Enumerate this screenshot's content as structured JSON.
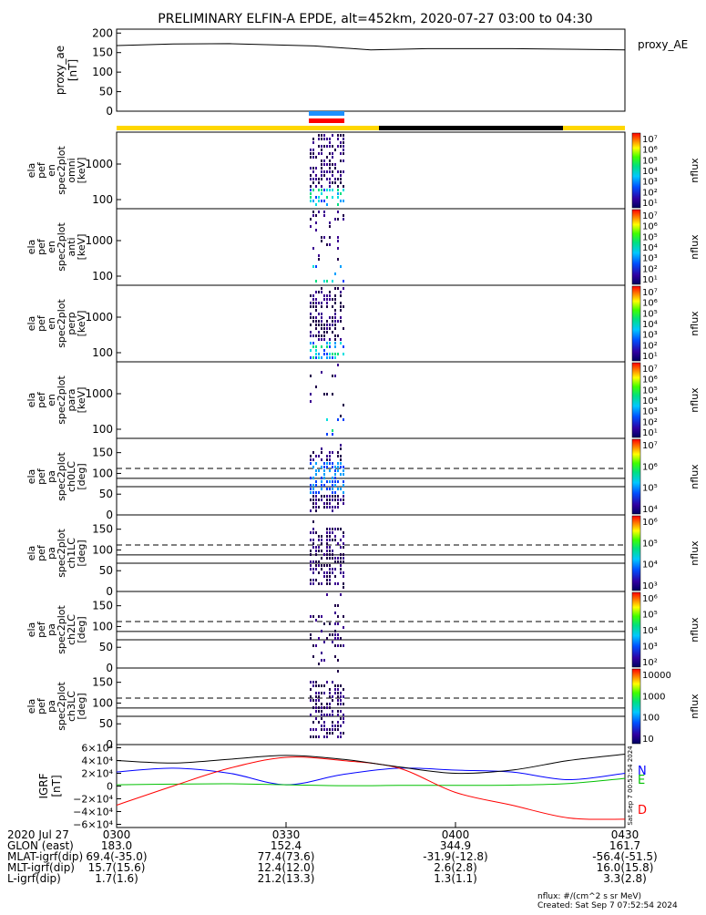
{
  "title": "PRELIMINARY ELFIN-A EPDE, alt=452km, 2020-07-27 03:00 to 04:30",
  "colors": {
    "sunlit": "#ffd700",
    "shadow": "#000000",
    "science_blue": "#1e90ff",
    "science_red": "#ff0000",
    "igrf_n": "#0000ff",
    "igrf_e": "#00c000",
    "igrf_d": "#ff0000",
    "igrf_total": "#000000"
  },
  "chart_data": [
    {
      "type": "line",
      "id": "proxy_ae",
      "ylabel": [
        "proxy_ae",
        "[nT]"
      ],
      "yticks": [
        "200",
        "150",
        "100",
        "50",
        "0"
      ],
      "ylim": [
        0,
        210
      ],
      "legend": "proxy_AE",
      "x": [
        0,
        10,
        20,
        35,
        45,
        55,
        70,
        90
      ],
      "values": [
        168,
        172,
        173,
        167,
        157,
        160,
        160,
        157
      ]
    },
    {
      "type": "heatmap",
      "id": "omni",
      "ylabel": [
        "ela",
        "pef",
        "en",
        "spec2plot",
        "omni",
        "[keV]"
      ],
      "yticks": [
        "1000",
        "100"
      ],
      "colorbar": {
        "label": "nflux",
        "ticks": [
          "10⁷",
          "10⁶",
          "10⁵",
          "10⁴",
          "10³",
          "10²",
          "10¹"
        ]
      }
    },
    {
      "type": "heatmap",
      "id": "anti",
      "ylabel": [
        "ela",
        "pef",
        "en",
        "spec2plot",
        "anti",
        "[keV]"
      ],
      "yticks": [
        "1000",
        "100"
      ],
      "colorbar": {
        "label": "nflux",
        "ticks": [
          "10⁷",
          "10⁶",
          "10⁵",
          "10⁴",
          "10³",
          "10²",
          "10¹"
        ]
      }
    },
    {
      "type": "heatmap",
      "id": "perp",
      "ylabel": [
        "ela",
        "pef",
        "en",
        "spec2plot",
        "perp",
        "[keV]"
      ],
      "yticks": [
        "1000",
        "100"
      ],
      "colorbar": {
        "label": "nflux",
        "ticks": [
          "10⁷",
          "10⁶",
          "10⁵",
          "10⁴",
          "10³",
          "10²",
          "10¹"
        ]
      }
    },
    {
      "type": "heatmap",
      "id": "para",
      "ylabel": [
        "ela",
        "pef",
        "en",
        "spec2plot",
        "para",
        "[keV]"
      ],
      "yticks": [
        "1000",
        "100"
      ],
      "colorbar": {
        "label": "nflux",
        "ticks": [
          "10⁷",
          "10⁶",
          "10⁵",
          "10⁴",
          "10³",
          "10²",
          "10¹"
        ]
      }
    },
    {
      "type": "heatmap",
      "id": "ch0LC",
      "ylabel": [
        "ela",
        "pef",
        "pa",
        "spec2plot",
        "ch0LC",
        "[deg]"
      ],
      "yticks": [
        "150",
        "100",
        "50",
        "0"
      ],
      "ylim": [
        0,
        180
      ],
      "loss_cone_deg": [
        68,
        88,
        112
      ],
      "colorbar": {
        "label": "nflux",
        "ticks": [
          "10⁷",
          "10⁶",
          "10⁵",
          "10⁴"
        ]
      }
    },
    {
      "type": "heatmap",
      "id": "ch1LC",
      "ylabel": [
        "ela",
        "pef",
        "pa",
        "spec2plot",
        "ch1LC",
        "[deg]"
      ],
      "yticks": [
        "150",
        "100",
        "50",
        "0"
      ],
      "ylim": [
        0,
        180
      ],
      "loss_cone_deg": [
        68,
        88,
        112
      ],
      "colorbar": {
        "label": "nflux",
        "ticks": [
          "10⁶",
          "10⁵",
          "10⁴",
          "10³"
        ]
      }
    },
    {
      "type": "heatmap",
      "id": "ch2LC",
      "ylabel": [
        "ela",
        "pef",
        "pa",
        "spec2plot",
        "ch2LC",
        "[deg]"
      ],
      "yticks": [
        "150",
        "100",
        "50",
        "0"
      ],
      "ylim": [
        0,
        180
      ],
      "loss_cone_deg": [
        68,
        88,
        112
      ],
      "colorbar": {
        "label": "nflux",
        "ticks": [
          "10⁶",
          "10⁵",
          "10⁴",
          "10³",
          "10²"
        ]
      }
    },
    {
      "type": "heatmap",
      "id": "ch3LC",
      "ylabel": [
        "ela",
        "pef",
        "pa",
        "spec2plot",
        "ch3LC",
        "[deg]"
      ],
      "yticks": [
        "150",
        "100",
        "50",
        "0"
      ],
      "ylim": [
        0,
        180
      ],
      "loss_cone_deg": [
        68,
        88,
        112
      ],
      "colorbar": {
        "label": "nflux",
        "ticks": [
          "10000",
          "1000",
          "100",
          "10"
        ]
      }
    },
    {
      "type": "line",
      "id": "igrf",
      "ylabel": [
        "IGRF",
        "[nT]"
      ],
      "yticks": [
        "6×10⁴",
        "4×10⁴",
        "2×10⁴",
        "0",
        "−2×10⁴",
        "−4×10⁴",
        "−6×10⁴"
      ],
      "ylim": [
        -65000,
        65000
      ],
      "x": [
        0,
        10,
        20,
        30,
        40,
        50,
        60,
        70,
        80,
        90
      ],
      "series": [
        {
          "name": "N",
          "values": [
            22000,
            28000,
            20000,
            2000,
            18000,
            28000,
            25000,
            22000,
            10000,
            20000
          ]
        },
        {
          "name": "E",
          "values": [
            2000,
            3000,
            3500,
            2000,
            500,
            1000,
            1000,
            1500,
            4000,
            12000
          ]
        },
        {
          "name": "D",
          "values": [
            -30000,
            0,
            28000,
            45000,
            40000,
            28000,
            -10000,
            -30000,
            -50000,
            -52000
          ]
        },
        {
          "values": [
            40000,
            36000,
            42000,
            48000,
            42000,
            30000,
            20000,
            25000,
            40000,
            50000
          ]
        }
      ]
    }
  ],
  "footer": {
    "date_label": "2020 Jul 27",
    "times": [
      "0300",
      "0330",
      "0400",
      "0430"
    ],
    "rows": [
      {
        "label": "GLON (east)",
        "values": [
          "183.0",
          "152.4",
          "344.9",
          "161.7"
        ]
      },
      {
        "label": "MLAT-igrf(dip)",
        "values": [
          "69.4(-35.0)",
          "77.4(73.6)",
          "-31.9(-12.8)",
          "-56.4(-51.5)"
        ]
      },
      {
        "label": "MLT-igrf(dip)",
        "values": [
          "15.7(15.6)",
          "12.4(12.0)",
          "2.6(2.8)",
          "16.0(15.8)"
        ]
      },
      {
        "label": "L-igrf(dip)",
        "values": [
          "1.7(1.6)",
          "21.2(13.3)",
          "1.3(1.1)",
          "3.3(2.8)"
        ]
      }
    ],
    "units_note": "nflux: #/(cm^2 s sr MeV)",
    "created": "Created: Sat Sep  7 07:52:54 2024",
    "side_stamp": "Sat Sep  7 00:52:54 2024"
  }
}
